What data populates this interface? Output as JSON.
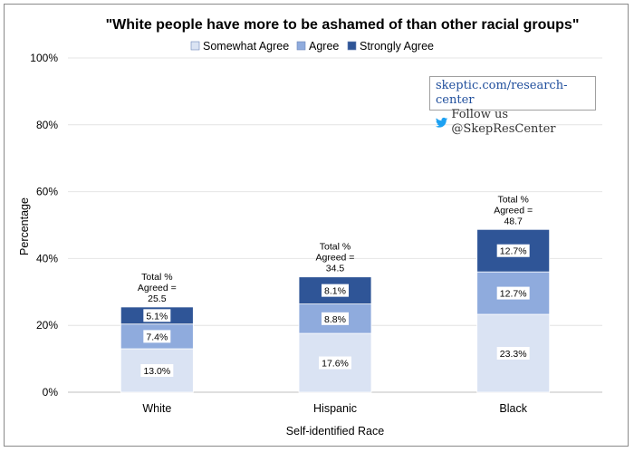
{
  "chart_data": {
    "type": "bar",
    "stacked": true,
    "title": "\"White people have more to be ashamed of than other racial groups\"",
    "xlabel": "Self-identified Race",
    "ylabel": "Percentage",
    "ylim": [
      0,
      100
    ],
    "yticks": [
      "0%",
      "20%",
      "40%",
      "60%",
      "80%",
      "100%"
    ],
    "categories": [
      "White",
      "Hispanic",
      "Black"
    ],
    "series": [
      {
        "name": "Somewhat Agree",
        "color": "#dae3f3",
        "values": [
          13.0,
          17.6,
          23.3
        ],
        "labels": [
          "13.0%",
          "17.6%",
          "23.3%"
        ]
      },
      {
        "name": "Agree",
        "color": "#8fabdd",
        "values": [
          7.4,
          8.8,
          12.7
        ],
        "labels": [
          "7.4%",
          "8.8%",
          "12.7%"
        ]
      },
      {
        "name": "Strongly Agree",
        "color": "#2f5597",
        "values": [
          5.1,
          8.1,
          12.7
        ],
        "labels": [
          "5.1%",
          "8.1%",
          "12.7%"
        ]
      }
    ],
    "totals": [
      {
        "lines": [
          "Total %",
          "Agreed =",
          "25.5"
        ]
      },
      {
        "lines": [
          "Total %",
          "Agreed =",
          "34.5"
        ]
      },
      {
        "lines": [
          "Total %",
          "Agreed =",
          "48.7"
        ]
      }
    ],
    "legend_position": "top"
  },
  "watermark": {
    "site": "skeptic.com/research-center",
    "follow": "Follow us @SkepResCenter",
    "icon": "twitter-bird-icon",
    "icon_color": "#1da1f2"
  }
}
